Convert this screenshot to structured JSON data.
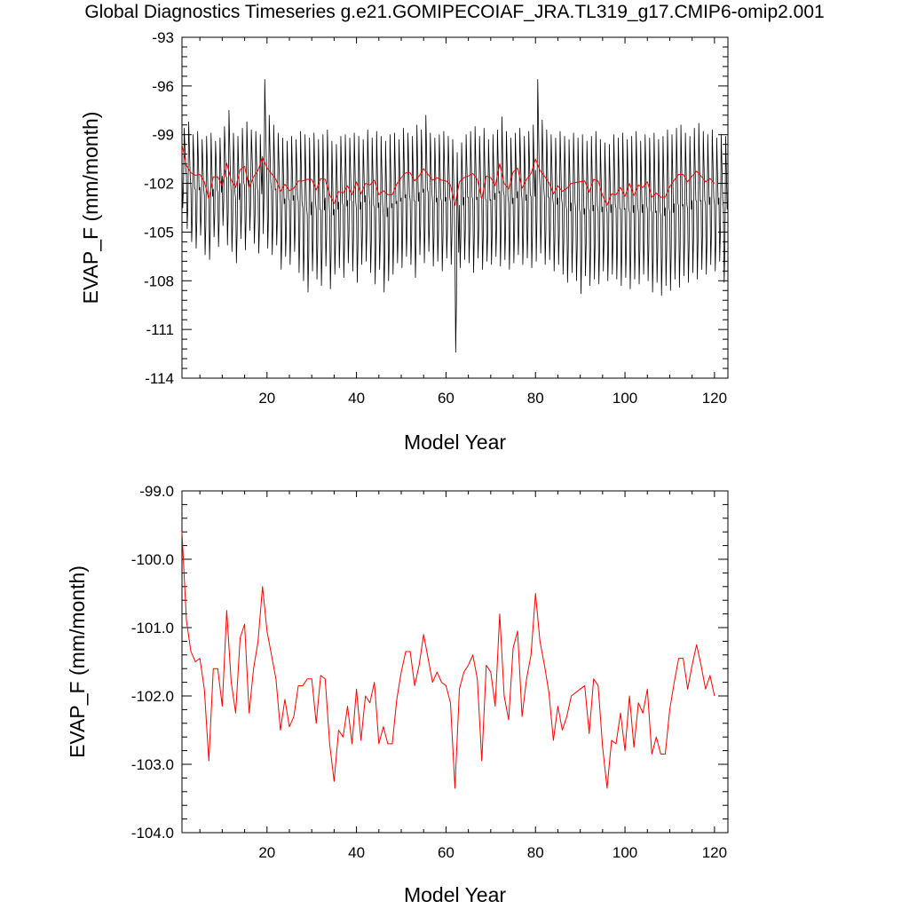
{
  "figure": {
    "title": "Global Diagnostics Timeseries g.e21.GOMIPECOIAF_JRA.TL319_g17.CMIP6-omip2.001"
  },
  "colors": {
    "monthly": "#000000",
    "annual": "#ff0000"
  },
  "chart_data": [
    {
      "type": "line",
      "xlabel": "Model Year",
      "ylabel": "EVAP_F (mm/month)",
      "xlim": [
        1,
        123
      ],
      "ylim": [
        -114,
        -93
      ],
      "xticks": [
        20,
        40,
        60,
        80,
        100,
        120
      ],
      "yticks": [
        -114,
        -111,
        -108,
        -105,
        -102,
        -99,
        -96,
        -93
      ],
      "ytick_labels": [
        "-114",
        "-111",
        "-108",
        "-105",
        "-102",
        "-99",
        "-96",
        "-93"
      ],
      "grid": false,
      "series": [
        {
          "role": "monthly",
          "style": "seasonal-cycle",
          "note": "monthly values oscillate roughly between -108 and -97 each year",
          "cycle_high": [
            -98.6,
            -98.2,
            -99.0,
            -98.8,
            -99.3,
            -99.1,
            -98.9,
            -99.4,
            -99.2,
            -98.5,
            -97.5,
            -98.9,
            -99.1,
            -98.6,
            -98.2,
            -98.7,
            -98.8,
            -99.0,
            -95.6,
            -97.8,
            -98.4,
            -98.9,
            -99.2,
            -99.4,
            -99.1,
            -99.3,
            -98.8,
            -99.0,
            -99.2,
            -98.9,
            -99.3,
            -99.0,
            -98.7,
            -99.4,
            -99.6,
            -99.1,
            -99.0,
            -99.2,
            -98.9,
            -99.1,
            -99.3,
            -98.7,
            -99.2,
            -98.8,
            -99.1,
            -99.4,
            -99.0,
            -98.9,
            -99.3,
            -98.6,
            -98.9,
            -99.1,
            -98.4,
            -98.7,
            -97.8,
            -98.9,
            -99.2,
            -99.0,
            -98.8,
            -99.1,
            -99.3,
            -100.1,
            -99.5,
            -99.0,
            -98.8,
            -98.5,
            -99.1,
            -98.6,
            -99.3,
            -99.0,
            -98.7,
            -97.9,
            -98.8,
            -99.2,
            -98.9,
            -98.6,
            -99.1,
            -98.8,
            -98.4,
            -95.6,
            -98.1,
            -98.7,
            -99.0,
            -99.2,
            -98.8,
            -99.1,
            -99.3,
            -98.9,
            -99.2,
            -99.0,
            -99.4,
            -99.1,
            -98.8,
            -99.3,
            -99.5,
            -99.6,
            -99.0,
            -99.2,
            -98.9,
            -99.3,
            -99.1,
            -98.8,
            -99.4,
            -99.0,
            -99.2,
            -98.9,
            -99.3,
            -99.1,
            -98.7,
            -99.0,
            -98.6,
            -98.4,
            -98.9,
            -99.1,
            -98.6,
            -98.3,
            -98.8,
            -99.0,
            -98.7,
            -99.2,
            -99.0,
            -99.1
          ],
          "cycle_low": [
            -103.5,
            -104.8,
            -105.6,
            -106.0,
            -105.2,
            -106.4,
            -106.7,
            -105.3,
            -105.9,
            -104.6,
            -105.8,
            -106.2,
            -106.9,
            -105.4,
            -106.1,
            -104.9,
            -105.7,
            -106.3,
            -105.1,
            -106.0,
            -106.4,
            -105.8,
            -107.3,
            -106.5,
            -107.0,
            -106.2,
            -107.5,
            -108.0,
            -108.7,
            -107.4,
            -107.9,
            -108.3,
            -107.1,
            -108.5,
            -107.6,
            -107.2,
            -107.8,
            -106.9,
            -107.4,
            -108.1,
            -107.0,
            -106.8,
            -107.5,
            -108.2,
            -107.3,
            -108.7,
            -108.0,
            -107.6,
            -106.9,
            -107.2,
            -106.5,
            -107.0,
            -107.8,
            -106.4,
            -106.9,
            -106.2,
            -107.1,
            -106.8,
            -107.4,
            -106.6,
            -107.0,
            -112.4,
            -107.2,
            -106.7,
            -106.9,
            -107.5,
            -106.6,
            -107.3,
            -106.8,
            -107.0,
            -106.5,
            -107.1,
            -106.7,
            -107.3,
            -106.9,
            -106.4,
            -107.0,
            -106.6,
            -107.2,
            -106.8,
            -106.3,
            -107.0,
            -106.7,
            -107.4,
            -107.0,
            -107.6,
            -108.1,
            -107.5,
            -108.0,
            -108.8,
            -107.7,
            -108.3,
            -107.9,
            -108.2,
            -107.4,
            -108.0,
            -107.6,
            -107.9,
            -108.3,
            -107.8,
            -108.5,
            -107.9,
            -108.2,
            -107.6,
            -108.0,
            -108.7,
            -108.1,
            -108.9,
            -108.3,
            -108.6,
            -107.9,
            -108.4,
            -107.7,
            -108.1,
            -107.5,
            -107.9,
            -107.3,
            -107.6,
            -107.0,
            -107.4,
            -106.8,
            -108.1,
            -107.5
          ]
        },
        {
          "role": "annual",
          "values": [
            -99.6,
            -100.9,
            -101.35,
            -101.5,
            -101.45,
            -101.9,
            -102.95,
            -101.6,
            -101.6,
            -102.15,
            -100.75,
            -101.8,
            -102.25,
            -101.15,
            -100.95,
            -102.25,
            -101.6,
            -101.2,
            -100.4,
            -101.05,
            -101.4,
            -101.75,
            -102.5,
            -102.05,
            -102.45,
            -102.3,
            -101.85,
            -101.85,
            -101.75,
            -101.75,
            -102.4,
            -101.7,
            -101.75,
            -102.7,
            -103.25,
            -102.5,
            -102.6,
            -102.15,
            -102.7,
            -101.9,
            -102.65,
            -102.0,
            -102.1,
            -101.8,
            -102.7,
            -102.45,
            -102.7,
            -102.7,
            -102.05,
            -101.65,
            -101.35,
            -101.35,
            -101.85,
            -101.55,
            -101.1,
            -101.45,
            -101.8,
            -101.65,
            -101.8,
            -101.85,
            -102.1,
            -103.35,
            -101.9,
            -101.65,
            -101.55,
            -101.4,
            -101.75,
            -102.95,
            -101.55,
            -101.65,
            -102.15,
            -100.8,
            -102.0,
            -102.35,
            -101.3,
            -101.05,
            -102.3,
            -101.75,
            -101.4,
            -100.5,
            -101.2,
            -101.55,
            -101.95,
            -102.65,
            -102.15,
            -102.5,
            -102.3,
            -102.0,
            -101.95,
            -101.9,
            -101.85,
            -102.55,
            -101.75,
            -101.85,
            -102.75,
            -103.35,
            -102.65,
            -102.7,
            -102.25,
            -102.8,
            -102.0,
            -102.75,
            -102.1,
            -102.25,
            -101.9,
            -102.85,
            -102.6,
            -102.85,
            -102.85,
            -102.2,
            -101.8,
            -101.45,
            -101.45,
            -101.9,
            -101.55,
            -101.25,
            -101.55,
            -101.9,
            -101.7,
            -102.0
          ]
        }
      ]
    },
    {
      "type": "line",
      "xlabel": "Model Year",
      "ylabel": "EVAP_F (mm/month)",
      "xlim": [
        1,
        123
      ],
      "ylim": [
        -104,
        -99
      ],
      "xticks": [
        20,
        40,
        60,
        80,
        100,
        120
      ],
      "yticks": [
        -104,
        -103,
        -102,
        -101,
        -100,
        -99
      ],
      "ytick_labels": [
        "-104.0",
        "-103.0",
        "-102.0",
        "-101.0",
        "-100.0",
        "-99.0"
      ],
      "grid": false,
      "series": [
        {
          "role": "annual",
          "values": [
            -99.6,
            -100.9,
            -101.35,
            -101.5,
            -101.45,
            -101.9,
            -102.95,
            -101.6,
            -101.6,
            -102.15,
            -100.75,
            -101.8,
            -102.25,
            -101.15,
            -100.95,
            -102.25,
            -101.6,
            -101.2,
            -100.4,
            -101.05,
            -101.4,
            -101.75,
            -102.5,
            -102.05,
            -102.45,
            -102.3,
            -101.85,
            -101.85,
            -101.75,
            -101.75,
            -102.4,
            -101.7,
            -101.75,
            -102.7,
            -103.25,
            -102.5,
            -102.6,
            -102.15,
            -102.7,
            -101.9,
            -102.65,
            -102.0,
            -102.1,
            -101.8,
            -102.7,
            -102.45,
            -102.7,
            -102.7,
            -102.05,
            -101.65,
            -101.35,
            -101.35,
            -101.85,
            -101.55,
            -101.1,
            -101.45,
            -101.8,
            -101.65,
            -101.8,
            -101.85,
            -102.1,
            -103.35,
            -101.9,
            -101.65,
            -101.55,
            -101.4,
            -101.75,
            -102.95,
            -101.55,
            -101.65,
            -102.15,
            -100.8,
            -102.0,
            -102.35,
            -101.3,
            -101.05,
            -102.3,
            -101.75,
            -101.4,
            -100.5,
            -101.2,
            -101.55,
            -101.95,
            -102.65,
            -102.15,
            -102.5,
            -102.3,
            -102.0,
            -101.95,
            -101.9,
            -101.85,
            -102.55,
            -101.75,
            -101.85,
            -102.75,
            -103.35,
            -102.65,
            -102.7,
            -102.25,
            -102.8,
            -102.0,
            -102.75,
            -102.1,
            -102.25,
            -101.9,
            -102.85,
            -102.6,
            -102.85,
            -102.85,
            -102.2,
            -101.8,
            -101.45,
            -101.45,
            -101.9,
            -101.55,
            -101.25,
            -101.55,
            -101.9,
            -101.7,
            -102.0
          ]
        }
      ]
    }
  ]
}
